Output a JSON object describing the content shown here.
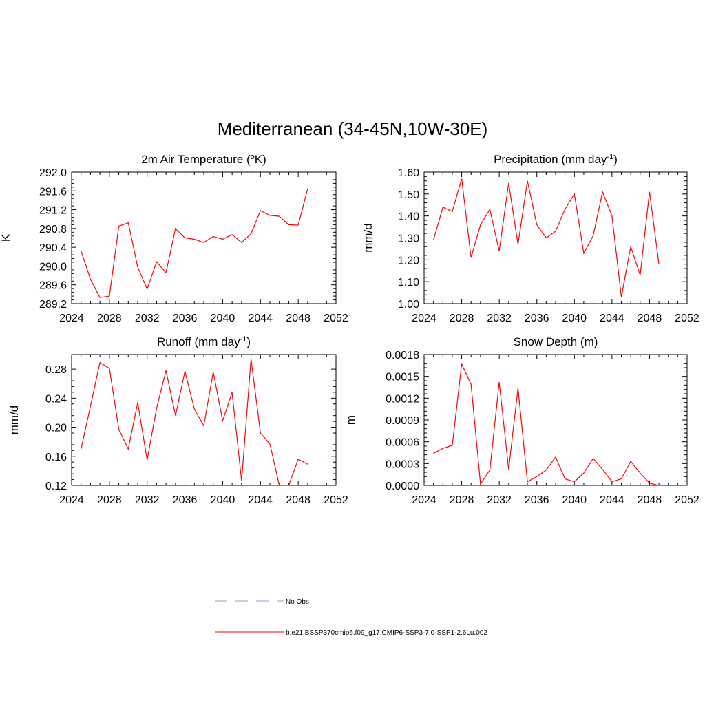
{
  "figure": {
    "title": "Mediterranean (34-45N,10W-30E)"
  },
  "legend": {
    "items": [
      {
        "label": "No Obs",
        "color": "#9999dd",
        "dash": true
      },
      {
        "label": "b.e21.BSSP370cmip6.f09_g17.CMIP6-SSP3-7.0-SSP1-2.6Lu.002",
        "color": "#ff0000",
        "dash": false
      }
    ]
  },
  "colors": {
    "series": "#ff0000",
    "axis": "#000000"
  },
  "chart_data": [
    {
      "type": "line",
      "title": "2m Air Temperature (°K)",
      "title_parts": [
        "2m Air Temperature (",
        "o",
        "K)"
      ],
      "title_style": "sup",
      "ylabel": "K",
      "xlim": [
        2024,
        2052
      ],
      "ylim": [
        289.2,
        292.0
      ],
      "xticks": [
        2024,
        2028,
        2032,
        2036,
        2040,
        2044,
        2048,
        2052
      ],
      "xtick_labels": [
        "2024",
        "2028",
        "2032",
        "2036",
        "2040",
        "2044",
        "2048",
        "2052"
      ],
      "yticks": [
        289.2,
        289.6,
        290.0,
        290.4,
        290.8,
        291.2,
        291.6,
        292.0
      ],
      "ytick_labels": [
        "289.2",
        "289.6",
        "290.0",
        "290.4",
        "290.8",
        "291.2",
        "291.6",
        "292.0"
      ],
      "x": [
        2025,
        2026,
        2027,
        2028,
        2029,
        2030,
        2031,
        2032,
        2033,
        2034,
        2035,
        2036,
        2037,
        2038,
        2039,
        2040,
        2041,
        2042,
        2043,
        2044,
        2045,
        2046,
        2047,
        2048,
        2049
      ],
      "y": [
        290.32,
        289.72,
        289.33,
        289.36,
        290.85,
        290.92,
        289.98,
        289.51,
        290.09,
        289.86,
        290.8,
        290.6,
        290.57,
        290.5,
        290.63,
        290.57,
        290.67,
        290.5,
        290.69,
        291.18,
        291.08,
        291.06,
        290.88,
        290.87,
        291.65
      ]
    },
    {
      "type": "line",
      "title": "Precipitation (mm day-1)",
      "title_parts": [
        "Precipitation (mm day",
        "-1",
        ")"
      ],
      "title_style": "sup",
      "ylabel": "mm/d",
      "xlim": [
        2024,
        2052
      ],
      "ylim": [
        1.0,
        1.6
      ],
      "xticks": [
        2024,
        2028,
        2032,
        2036,
        2040,
        2044,
        2048,
        2052
      ],
      "xtick_labels": [
        "2024",
        "2028",
        "2032",
        "2036",
        "2040",
        "2044",
        "2048",
        "2052"
      ],
      "yticks": [
        1.0,
        1.1,
        1.2,
        1.3,
        1.4,
        1.5,
        1.6
      ],
      "ytick_labels": [
        "1.00",
        "1.10",
        "1.20",
        "1.30",
        "1.40",
        "1.50",
        "1.60"
      ],
      "x": [
        2025,
        2026,
        2027,
        2028,
        2029,
        2030,
        2031,
        2032,
        2033,
        2034,
        2035,
        2036,
        2037,
        2038,
        2039,
        2040,
        2041,
        2042,
        2043,
        2044,
        2045,
        2046,
        2047,
        2048,
        2049
      ],
      "y": [
        1.29,
        1.44,
        1.42,
        1.57,
        1.21,
        1.36,
        1.43,
        1.24,
        1.55,
        1.27,
        1.56,
        1.36,
        1.3,
        1.33,
        1.43,
        1.5,
        1.23,
        1.31,
        1.51,
        1.4,
        1.03,
        1.26,
        1.13,
        1.51,
        1.18
      ]
    },
    {
      "type": "line",
      "title": "Runoff (mm day-1)",
      "title_parts": [
        "Runoff (mm day",
        "-1",
        ")"
      ],
      "title_style": "sup",
      "ylabel": "mm/d",
      "xlim": [
        2024,
        2052
      ],
      "ylim": [
        0.12,
        0.3
      ],
      "xticks": [
        2024,
        2028,
        2032,
        2036,
        2040,
        2044,
        2048,
        2052
      ],
      "xtick_labels": [
        "2024",
        "2028",
        "2032",
        "2036",
        "2040",
        "2044",
        "2048",
        "2052"
      ],
      "yticks": [
        0.12,
        0.16,
        0.2,
        0.24,
        0.28
      ],
      "ytick_labels": [
        "0.12",
        "0.16",
        "0.20",
        "0.24",
        "0.28"
      ],
      "x": [
        2025,
        2026,
        2027,
        2028,
        2029,
        2030,
        2031,
        2032,
        2033,
        2034,
        2035,
        2036,
        2037,
        2038,
        2039,
        2040,
        2041,
        2042,
        2043,
        2044,
        2045,
        2046,
        2047,
        2048,
        2049
      ],
      "y": [
        0.17,
        0.229,
        0.289,
        0.281,
        0.197,
        0.17,
        0.234,
        0.155,
        0.226,
        0.278,
        0.216,
        0.277,
        0.225,
        0.202,
        0.276,
        0.209,
        0.248,
        0.126,
        0.294,
        0.192,
        0.177,
        0.12,
        0.12,
        0.156,
        0.149
      ]
    },
    {
      "type": "line",
      "title": "Snow Depth (m)",
      "title_parts": [
        "Snow Depth (m)"
      ],
      "title_style": "plain",
      "ylabel": "m",
      "xlim": [
        2024,
        2052
      ],
      "ylim": [
        0.0,
        0.0018
      ],
      "xticks": [
        2024,
        2028,
        2032,
        2036,
        2040,
        2044,
        2048,
        2052
      ],
      "xtick_labels": [
        "2024",
        "2028",
        "2032",
        "2036",
        "2040",
        "2044",
        "2048",
        "2052"
      ],
      "yticks": [
        0.0,
        0.0003,
        0.0006,
        0.0009,
        0.0012,
        0.0015,
        0.0018
      ],
      "ytick_labels": [
        "0.0000",
        "0.0003",
        "0.0006",
        "0.0009",
        "0.0012",
        "0.0015",
        "0.0018"
      ],
      "x": [
        2025,
        2026,
        2027,
        2028,
        2029,
        2030,
        2031,
        2032,
        2033,
        2034,
        2035,
        2036,
        2037,
        2038,
        2039,
        2040,
        2041,
        2042,
        2043,
        2044,
        2045,
        2046,
        2047,
        2048,
        2049
      ],
      "y": [
        0.00044,
        0.00051,
        0.00055,
        0.00167,
        0.00139,
        2e-05,
        0.00021,
        0.00142,
        0.00022,
        0.00134,
        5e-05,
        0.00012,
        0.00021,
        0.00039,
        9e-05,
        5e-05,
        0.00017,
        0.00037,
        0.00022,
        5e-05,
        9e-05,
        0.00033,
        0.00017,
        3e-05,
        0.0
      ]
    }
  ]
}
